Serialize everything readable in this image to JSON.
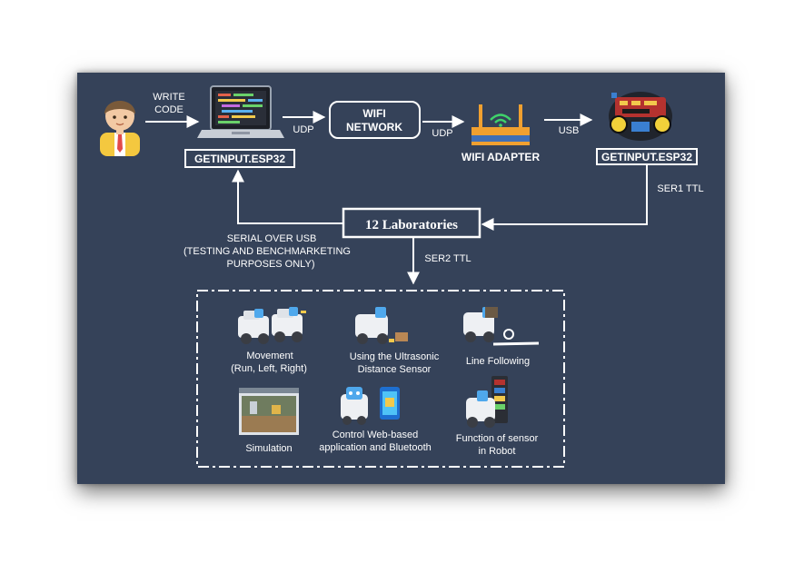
{
  "labels": {
    "write_code_line1": "WRITE",
    "write_code_line2": "CODE",
    "udp_1": "UDP",
    "wifi_network_line1": "WIFI",
    "wifi_network_line2": "NETWORK",
    "udp_2": "UDP",
    "usb": "USB",
    "getinput_left": "GETINPUT.ESP32",
    "wifi_adapter": "WIFI ADAPTER",
    "getinput_right": "GETINPUT.ESP32",
    "ser1_ttl": "SER1 TTL",
    "laboratories": "12 Laboratories",
    "serial_line1": "SERIAL  OVER USB",
    "serial_line2": "(TESTING AND BENCHMARKETING",
    "serial_line3": "PURPOSES ONLY)",
    "ser2_ttl": "SER2 TTL"
  },
  "labs": {
    "movement_line1": "Movement",
    "movement_line2": "(Run, Left, Right)",
    "ultrasonic_line1": "Using the Ultrasonic",
    "ultrasonic_line2": "Distance Sensor",
    "line_following": "Line Following",
    "simulation": "Simulation",
    "control_line1": "Control Web-based",
    "control_line2": "application and Bluetooth",
    "sensor_line1": "Function of sensor",
    "sensor_line2": "in Robot"
  },
  "colors": {
    "panel_bg": "#354259",
    "foreground": "#ffffff",
    "router_accent": "#f0a030",
    "router_body": "#3f6fb6",
    "wifi_signal": "#3fd36a"
  }
}
